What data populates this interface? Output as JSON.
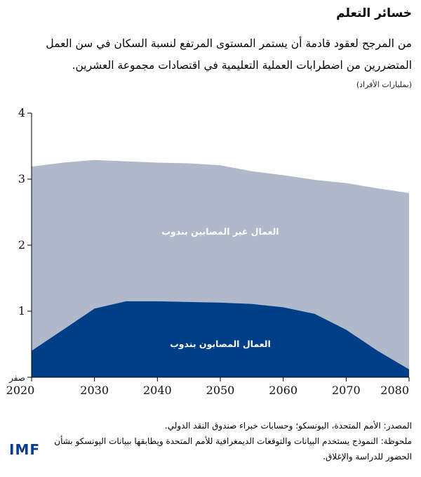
{
  "header": {
    "title": "خسائر التعلم",
    "subtitle": "من المرجح لعقود قادمة أن يستمر المستوى المرتفع لنسبة السكان في سن العمل المتضررين من اضطرابات العملية التعليمية في اقتصادات مجموعة العشرين.",
    "unit": "(بمليارات الأفراد)"
  },
  "chart_data": {
    "type": "area",
    "stacked": true,
    "x": [
      2020,
      2025,
      2030,
      2035,
      2040,
      2045,
      2050,
      2055,
      2060,
      2065,
      2070,
      2075,
      2080
    ],
    "series": [
      {
        "name": "العمال المصابون بندوب",
        "values": [
          0.4,
          0.72,
          1.04,
          1.15,
          1.15,
          1.14,
          1.13,
          1.11,
          1.06,
          0.96,
          0.72,
          0.4,
          0.12
        ],
        "color": "#003f87"
      },
      {
        "name": "العمال غير المصابين بندوب",
        "values": [
          2.79,
          2.53,
          2.25,
          2.12,
          2.1,
          2.1,
          2.08,
          2.01,
          2.0,
          2.03,
          2.22,
          2.46,
          2.67
        ],
        "color": "#b0b9c9"
      }
    ],
    "xlabel": "",
    "ylabel": "",
    "xlim": [
      2020,
      2080
    ],
    "ylim": [
      0,
      4
    ],
    "x_ticks": [
      "2020",
      "2030",
      "2040",
      "2050",
      "2060",
      "2070",
      "2080"
    ],
    "y_ticks": [
      "صفر",
      "1",
      "2",
      "3",
      "4"
    ],
    "grid": false
  },
  "footer": {
    "source": "المصدر: الأمم المتحدة، اليونسكو؛ وحسابات خبراء صندوق النقد الدولي.",
    "note": "ملحوظة: النموذج يستخدم البيانات والتوقعات الديمغرافية للأمم المتحدة ويطابقها ببيانات اليونسكو بشأن الحضور للدراسة والإغلاق.",
    "logo": "IMF"
  }
}
